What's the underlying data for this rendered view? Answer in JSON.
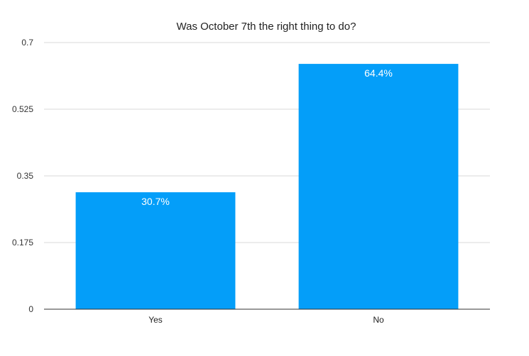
{
  "chart_data": {
    "type": "bar",
    "title": "Was October 7th the right thing to do?",
    "categories": [
      "Yes",
      "No"
    ],
    "values": [
      0.307,
      0.644
    ],
    "data_labels": [
      "30.7%",
      "64.4%"
    ],
    "y_ticks": [
      "0",
      "0.175",
      "0.35",
      "0.525",
      "0.7"
    ],
    "ylim": [
      0,
      0.7
    ],
    "xlabel": "",
    "ylabel": "",
    "grid": true,
    "legend": "none",
    "bar_color": "#049ef9"
  }
}
